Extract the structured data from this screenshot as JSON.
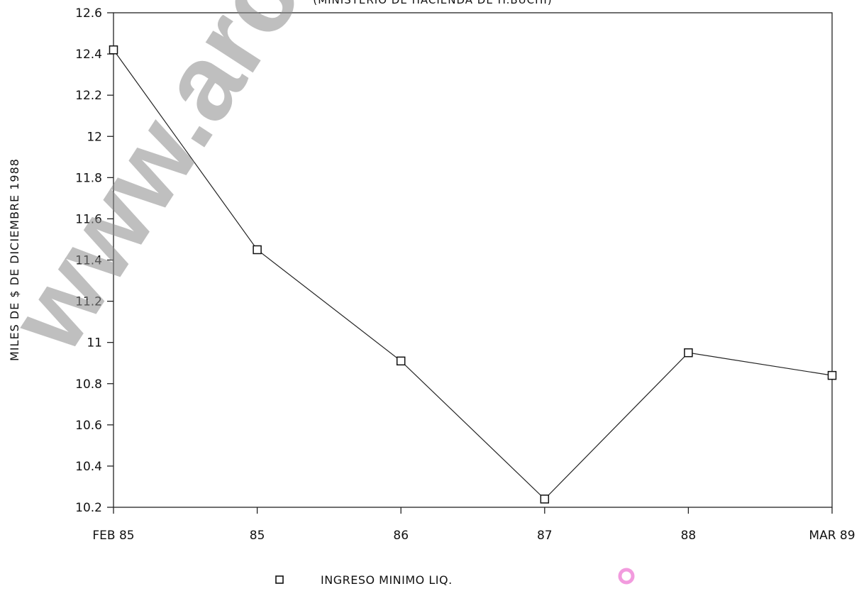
{
  "chart_data": {
    "type": "line",
    "title": "",
    "subtitle": "(MINISTERIO DE HACIENDA DE H.BUCHI)",
    "xlabel": "",
    "ylabel": "MILES DE $ DE DICIEMBRE 1988",
    "categories": [
      "FEB 85",
      "85",
      "86",
      "87",
      "88",
      "MAR 89"
    ],
    "ylim": [
      10.2,
      12.6
    ],
    "yticks": [
      "12.6",
      "12.4",
      "12.2",
      "12",
      "11.8",
      "11.6",
      "11.4",
      "11.2",
      "11",
      "10.8",
      "10.6",
      "10.4",
      "10.2"
    ],
    "series": [
      {
        "name": "INGRESO MINIMO LIQ.",
        "values": [
          12.42,
          11.45,
          10.91,
          10.24,
          10.95,
          10.84
        ]
      }
    ],
    "grid": false,
    "legend": "bottom-center",
    "marker": "hollow-square",
    "line_color": "#222222"
  },
  "watermark": "www.archiv"
}
